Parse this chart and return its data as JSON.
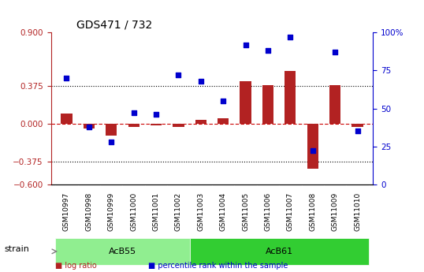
{
  "title": "GDS471 / 732",
  "samples": [
    "GSM10997",
    "GSM10998",
    "GSM10999",
    "GSM11000",
    "GSM11001",
    "GSM11002",
    "GSM11003",
    "GSM11004",
    "GSM11005",
    "GSM11006",
    "GSM11007",
    "GSM11008",
    "GSM11009",
    "GSM11010"
  ],
  "log_ratio": [
    0.1,
    -0.05,
    -0.12,
    -0.03,
    -0.02,
    -0.03,
    0.04,
    0.05,
    0.42,
    0.38,
    0.52,
    -0.45,
    0.38,
    -0.03
  ],
  "percentile_rank": [
    70,
    38,
    28,
    47,
    46,
    72,
    68,
    55,
    92,
    88,
    97,
    22,
    87,
    35
  ],
  "ylim_left": [
    -0.6,
    0.9
  ],
  "ylim_right": [
    0,
    100
  ],
  "yticks_left": [
    -0.6,
    -0.375,
    0,
    0.375,
    0.9
  ],
  "yticks_right": [
    0,
    25,
    50,
    75,
    100
  ],
  "hlines": [
    0.375,
    -0.375
  ],
  "zero_line": 0,
  "bar_color": "#b22222",
  "scatter_color": "#0000cd",
  "scatter_marker": "s",
  "scatter_size": 25,
  "bar_width": 0.5,
  "groups": [
    {
      "label": "AcB55",
      "start": 0,
      "end": 5,
      "color": "#90ee90"
    },
    {
      "label": "AcB61",
      "start": 6,
      "end": 13,
      "color": "#32cd32"
    }
  ],
  "strain_label": "strain",
  "legend_items": [
    {
      "label": "log ratio",
      "color": "#b22222",
      "marker": "s"
    },
    {
      "label": "percentile rank within the sample",
      "color": "#0000cd",
      "marker": "s"
    }
  ],
  "title_color": "#000000",
  "left_axis_color": "#b22222",
  "right_axis_color": "#0000cd",
  "background_color": "#ffffff",
  "plot_bg": "#ffffff",
  "grid_color": "#000000",
  "zero_line_color": "#cc0000",
  "tick_label_size": 7
}
